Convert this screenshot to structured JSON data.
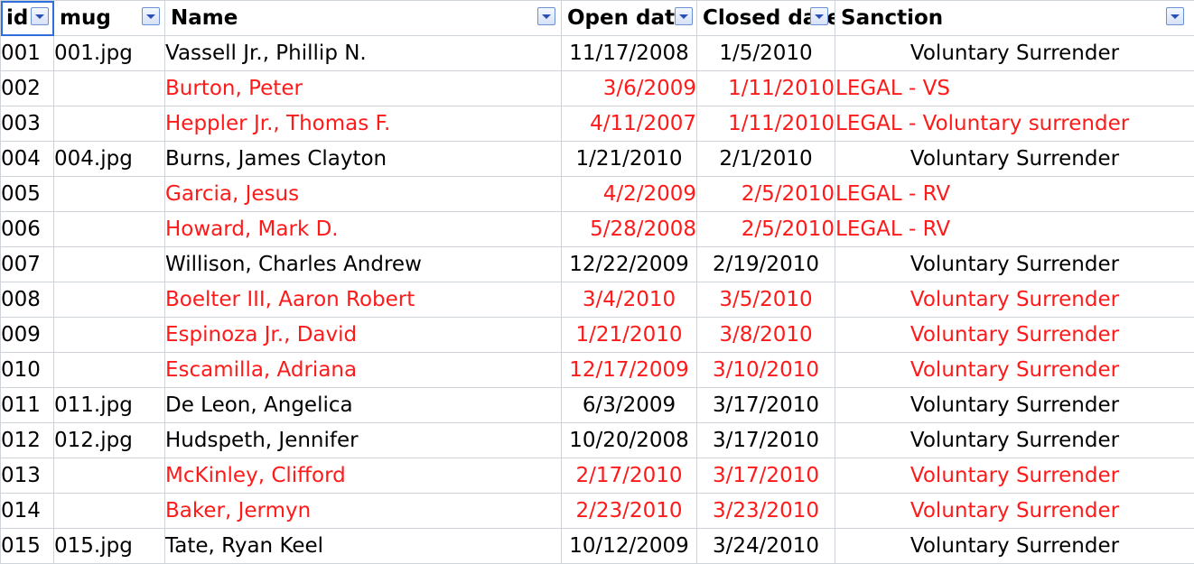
{
  "headers": [
    "id",
    "mug",
    "Name",
    "Open date",
    "Closed date",
    "Sanction"
  ],
  "rows": [
    {
      "id": "001",
      "mug": "001.jpg",
      "name": "Vassell Jr., Phillip N.",
      "open": "11/17/2008",
      "closed": "1/5/2010",
      "sanction": "Voluntary Surrender",
      "red": false
    },
    {
      "id": "002",
      "mug": "",
      "name": "Burton, Peter",
      "open": "3/6/2009",
      "closed": "1/11/2010",
      "sanction": "LEGAL - VS",
      "red": true
    },
    {
      "id": "003",
      "mug": "",
      "name": "Heppler Jr., Thomas F.",
      "open": "4/11/2007",
      "closed": "1/11/2010",
      "sanction": "LEGAL - Voluntary surrender",
      "red": true
    },
    {
      "id": "004",
      "mug": "004.jpg",
      "name": "Burns, James Clayton",
      "open": "1/21/2010",
      "closed": "2/1/2010",
      "sanction": "Voluntary Surrender",
      "red": false
    },
    {
      "id": "005",
      "mug": "",
      "name": "Garcia, Jesus",
      "open": "4/2/2009",
      "closed": "2/5/2010",
      "sanction": "LEGAL - RV",
      "red": true
    },
    {
      "id": "006",
      "mug": "",
      "name": "Howard, Mark D.",
      "open": "5/28/2008",
      "closed": "2/5/2010",
      "sanction": "LEGAL - RV",
      "red": true
    },
    {
      "id": "007",
      "mug": "",
      "name": "Willison, Charles Andrew",
      "open": "12/22/2009",
      "closed": "2/19/2010",
      "sanction": "Voluntary Surrender",
      "red": false
    },
    {
      "id": "008",
      "mug": "",
      "name": "Boelter III, Aaron Robert",
      "open": "3/4/2010",
      "closed": "3/5/2010",
      "sanction": "Voluntary Surrender",
      "red": true
    },
    {
      "id": "009",
      "mug": "",
      "name": "Espinoza Jr., David",
      "open": "1/21/2010",
      "closed": "3/8/2010",
      "sanction": "Voluntary Surrender",
      "red": true
    },
    {
      "id": "010",
      "mug": "",
      "name": "Escamilla, Adriana",
      "open": "12/17/2009",
      "closed": "3/10/2010",
      "sanction": "Voluntary Surrender",
      "red": true
    },
    {
      "id": "011",
      "mug": "011.jpg",
      "name": "De Leon, Angelica",
      "open": "6/3/2009",
      "closed": "3/17/2010",
      "sanction": "Voluntary Surrender",
      "red": false
    },
    {
      "id": "012",
      "mug": "012.jpg",
      "name": "Hudspeth, Jennifer",
      "open": "10/20/2008",
      "closed": "3/17/2010",
      "sanction": "Voluntary Surrender",
      "red": false
    },
    {
      "id": "013",
      "mug": "",
      "name": "McKinley, Clifford",
      "open": "2/17/2010",
      "closed": "3/17/2010",
      "sanction": "Voluntary Surrender",
      "red": true
    },
    {
      "id": "014",
      "mug": "",
      "name": "Baker, Jermyn",
      "open": "2/23/2010",
      "closed": "3/23/2010",
      "sanction": "Voluntary Surrender",
      "red": true
    },
    {
      "id": "015",
      "mug": "015.jpg",
      "name": "Tate, Ryan Keel",
      "open": "10/12/2009",
      "closed": "3/24/2010",
      "sanction": "Voluntary Surrender",
      "red": false
    }
  ],
  "colors": {
    "red_text": "#ff1a1a",
    "filter_button": "#6c8fd6",
    "selected_cell": "#2f6fdc"
  },
  "icons": {
    "filter": "filter-dropdown-icon"
  }
}
